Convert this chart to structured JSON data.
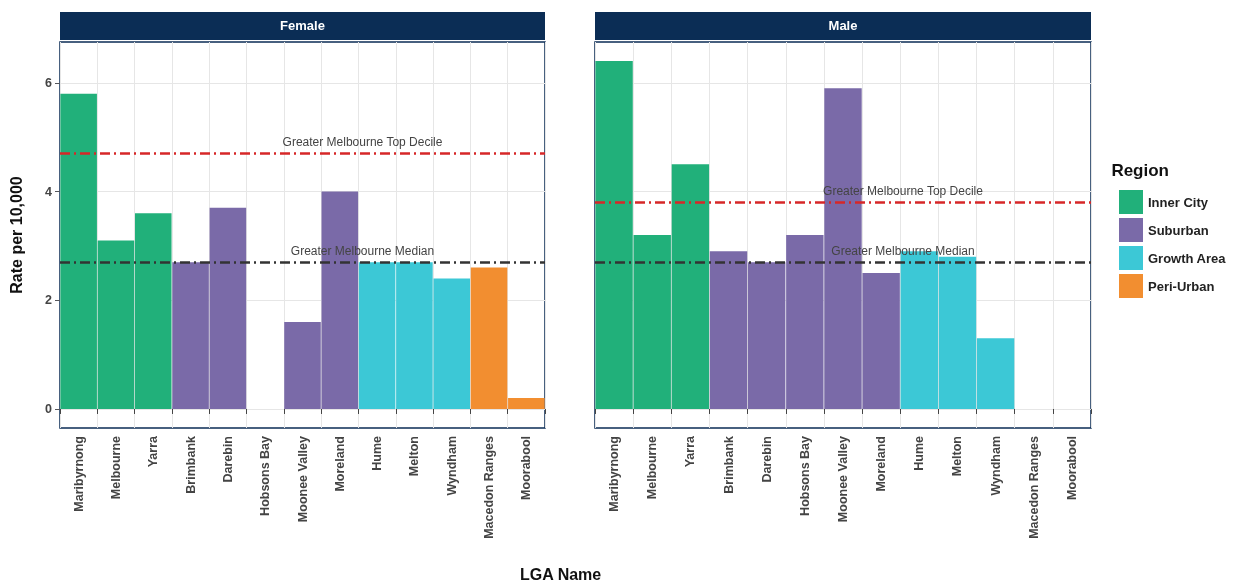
{
  "chart_data": [
    {
      "type": "bar",
      "title": "Female",
      "xlabel": "LGA Name",
      "ylabel": "Rate per 10,000",
      "categories": [
        "Maribyrnong",
        "Melbourne",
        "Yarra",
        "Brimbank",
        "Darebin",
        "Hobsons Bay",
        "Moonee Valley",
        "Moreland",
        "Hume",
        "Melton",
        "Wyndham",
        "Macedon Ranges",
        "Moorabool"
      ],
      "series": [
        {
          "color": "#21b07a",
          "values": [
            5.8,
            3.1,
            3.6,
            null,
            null,
            null,
            null,
            null,
            null,
            null,
            null,
            null,
            null
          ]
        },
        {
          "color": "#7a6aa8",
          "values": [
            null,
            null,
            null,
            2.7,
            3.7,
            null,
            1.6,
            4.0,
            null,
            null,
            null,
            null,
            null
          ]
        },
        {
          "color": "#3cc8d6",
          "values": [
            null,
            null,
            null,
            null,
            null,
            null,
            null,
            null,
            2.7,
            2.7,
            2.4,
            null,
            null
          ]
        },
        {
          "color": "#f28e30",
          "values": [
            null,
            null,
            null,
            null,
            null,
            null,
            null,
            null,
            null,
            null,
            null,
            2.6,
            0.2
          ]
        }
      ],
      "stacked": true,
      "ylim": [
        -0.35,
        6.75
      ],
      "yticks": [
        0,
        2,
        4,
        6
      ],
      "grid": true,
      "legend": false,
      "ref_lines": [
        {
          "axis": "y",
          "value": 4.7,
          "label": "Greater Melbourne Top Decile",
          "color": "#d62728",
          "line_style": "dashed"
        },
        {
          "axis": "y",
          "value": 2.7,
          "label": "Greater Melbourne Median",
          "color": "#333333",
          "line_style": "dashed"
        }
      ]
    },
    {
      "type": "bar",
      "title": "Male",
      "legend_title": "Region",
      "categories": [
        "Maribyrnong",
        "Melbourne",
        "Yarra",
        "Brimbank",
        "Darebin",
        "Hobsons Bay",
        "Moonee Valley",
        "Moreland",
        "Hume",
        "Melton",
        "Wyndham",
        "Macedon Ranges",
        "Moorabool"
      ],
      "series": [
        {
          "name": "Inner City",
          "color": "#21b07a",
          "values": [
            6.4,
            3.2,
            4.5,
            null,
            null,
            null,
            null,
            null,
            null,
            null,
            null,
            null,
            null
          ]
        },
        {
          "name": "Suburban",
          "color": "#7a6aa8",
          "values": [
            null,
            null,
            null,
            2.9,
            2.7,
            3.2,
            5.9,
            2.5,
            null,
            null,
            null,
            null,
            null
          ]
        },
        {
          "name": "Growth Area",
          "color": "#3cc8d6",
          "values": [
            null,
            null,
            null,
            null,
            null,
            null,
            null,
            null,
            2.9,
            2.8,
            1.3,
            null,
            null
          ]
        },
        {
          "name": "Peri-Urban",
          "color": "#f28e30",
          "values": [
            null,
            null,
            null,
            null,
            null,
            null,
            null,
            null,
            null,
            null,
            null,
            null,
            null
          ]
        }
      ],
      "stacked": true,
      "ylim": [
        -0.35,
        6.75
      ],
      "yticks": [
        0,
        2,
        4,
        6
      ],
      "grid": true,
      "legend": "right",
      "tick_labels": "x",
      "ref_lines": [
        {
          "axis": "y",
          "value": 3.8,
          "label": "Greater Melbourne Top Decile",
          "color": "#d62728",
          "line_style": "dashed"
        },
        {
          "axis": "y",
          "value": 2.7,
          "label": "Greater Melbourne Median",
          "color": "#333333",
          "line_style": "dashed"
        }
      ]
    }
  ]
}
